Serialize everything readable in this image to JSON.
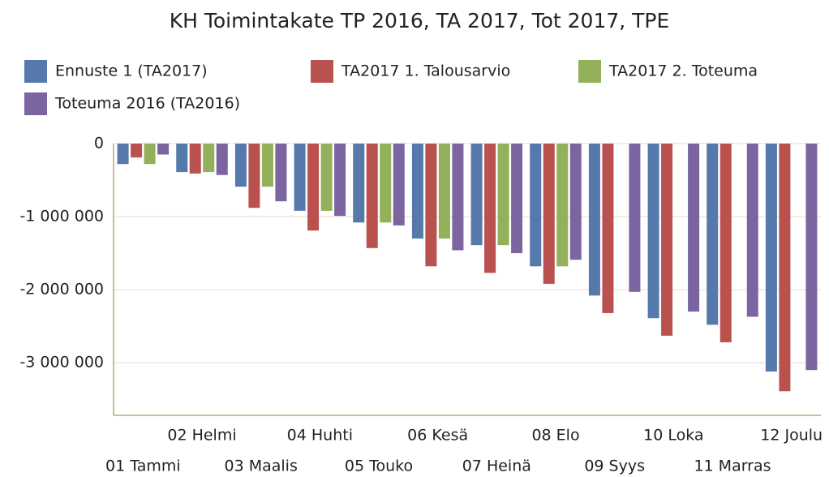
{
  "chart_data": {
    "type": "bar",
    "title": "KH Toimintakate TP 2016, TA 2017, Tot 2017, TPE",
    "categories": [
      "01 Tammi",
      "02 Helmi",
      "03 Maalis",
      "04 Huhti",
      "05 Touko",
      "06 Kesä",
      "07 Heinä",
      "08 Elo",
      "09 Syys",
      "10 Loka",
      "11 Marras",
      "12 Joulu"
    ],
    "series": [
      {
        "name": "Ennuste 1 (TA2017)",
        "color": "#5479aa",
        "values": [
          -280000,
          -390000,
          -590000,
          -920000,
          -1080000,
          -1300000,
          -1390000,
          -1680000,
          -2080000,
          -2390000,
          -2480000,
          -3120000
        ]
      },
      {
        "name": "TA2017 1. Talousarvio",
        "color": "#b9524e",
        "values": [
          -190000,
          -410000,
          -880000,
          -1190000,
          -1430000,
          -1680000,
          -1770000,
          -1920000,
          -2320000,
          -2630000,
          -2720000,
          -3390000
        ]
      },
      {
        "name": "TA2017 2. Toteuma",
        "color": "#93b05a",
        "values": [
          -280000,
          -390000,
          -590000,
          -920000,
          -1080000,
          -1300000,
          -1390000,
          -1680000,
          null,
          null,
          null,
          null
        ]
      },
      {
        "name": "Toteuma 2016 (TA2016)",
        "color": "#7c64a0",
        "values": [
          -150000,
          -430000,
          -790000,
          -990000,
          -1120000,
          -1460000,
          -1500000,
          -1590000,
          -2030000,
          -2300000,
          -2370000,
          -3100000
        ]
      }
    ],
    "ylim": [
      -3720000,
      0
    ],
    "yticks": [
      0,
      {
        "value": -1000000,
        "label": "-1 000 000"
      },
      {
        "value": -2000000,
        "label": "-2 000 000"
      },
      {
        "value": -3000000,
        "label": "-3 000 000"
      }
    ],
    "grid": true
  }
}
